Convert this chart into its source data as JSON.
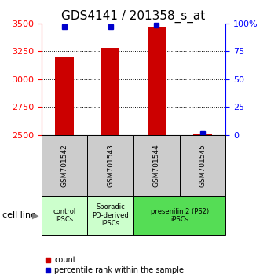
{
  "title": "GDS4141 / 201358_s_at",
  "samples": [
    "GSM701542",
    "GSM701543",
    "GSM701544",
    "GSM701545"
  ],
  "counts": [
    3195,
    3285,
    3470,
    2505
  ],
  "percentiles": [
    97,
    97,
    99,
    1
  ],
  "ylim_left": [
    2500,
    3500
  ],
  "ylim_right": [
    0,
    100
  ],
  "yticks_left": [
    2500,
    2750,
    3000,
    3250,
    3500
  ],
  "yticks_right": [
    0,
    25,
    50,
    75,
    100
  ],
  "ytick_labels_right": [
    "0",
    "25",
    "50",
    "75",
    "100%"
  ],
  "group_spans": [
    {
      "start": 0,
      "end": 1,
      "label": "control\nIPSCs",
      "color": "#ccffcc"
    },
    {
      "start": 1,
      "end": 2,
      "label": "Sporadic\nPD-derived\niPSCs",
      "color": "#ccffcc"
    },
    {
      "start": 2,
      "end": 4,
      "label": "presenilin 2 (PS2)\niPSCs",
      "color": "#55dd55"
    }
  ],
  "bar_color": "#cc0000",
  "dot_color": "#0000cc",
  "bar_width": 0.4,
  "cell_line_label": "cell line",
  "legend_count_label": "count",
  "legend_pct_label": "percentile rank within the sample",
  "gsm_box_color": "#cccccc",
  "title_fontsize": 11,
  "tick_fontsize": 8
}
